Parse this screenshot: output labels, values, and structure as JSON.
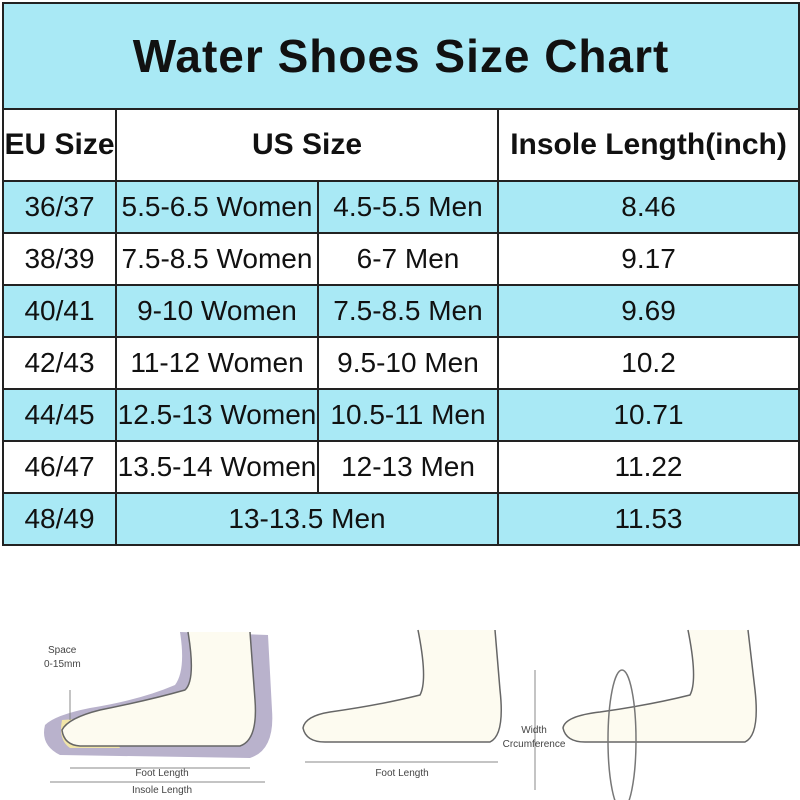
{
  "title": "Water Shoes Size Chart",
  "table": {
    "headers": [
      "EU Size",
      "US Size",
      "Insole Length(inch)"
    ],
    "rows": [
      {
        "eu": "36/37",
        "women": "5.5-6.5 Women",
        "men": "4.5-5.5 Men",
        "insole": "8.46"
      },
      {
        "eu": "38/39",
        "women": "7.5-8.5 Women",
        "men": "6-7 Men",
        "insole": "9.17"
      },
      {
        "eu": "40/41",
        "women": "9-10 Women",
        "men": "7.5-8.5 Men",
        "insole": "9.69"
      },
      {
        "eu": "42/43",
        "women": "11-12 Women",
        "men": "9.5-10 Men",
        "insole": "10.2"
      },
      {
        "eu": "44/45",
        "women": "12.5-13 Women",
        "men": "10.5-11 Men",
        "insole": "10.71"
      },
      {
        "eu": "46/47",
        "women": "13.5-14 Women",
        "men": "12-13 Men",
        "insole": "11.22"
      },
      {
        "eu": "48/49",
        "us": "13-13.5 Men",
        "insole": "11.53"
      }
    ]
  },
  "illustrations": {
    "space": "Space",
    "space_range": "0-15mm",
    "foot_length_1": "Foot Length",
    "insole_length": "Insole Length",
    "foot_length_2": "Foot Length",
    "width": "Width",
    "circumference": "Crcumference"
  }
}
